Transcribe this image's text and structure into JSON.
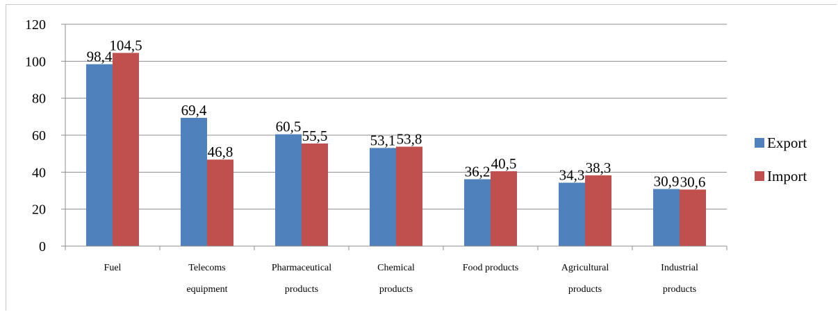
{
  "chart_data": {
    "type": "bar",
    "categories": [
      [
        "Fuel"
      ],
      [
        "Telecoms",
        "equipment"
      ],
      [
        "Pharmaceutical",
        "products"
      ],
      [
        "Chemical",
        "products"
      ],
      [
        "Food products"
      ],
      [
        "Agricultural",
        "products"
      ],
      [
        "Industrial",
        "products"
      ]
    ],
    "series": [
      {
        "name": "Export",
        "color": "#4f81bd",
        "values": [
          98.4,
          69.4,
          60.5,
          53.1,
          36.2,
          34.3,
          30.9
        ],
        "labels": [
          "98,4",
          "69,4",
          "60,5",
          "53,1",
          "36,2",
          "34,3",
          "30,9"
        ]
      },
      {
        "name": "Import",
        "color": "#c0504d",
        "values": [
          104.5,
          46.8,
          55.5,
          53.8,
          40.5,
          38.3,
          30.6
        ],
        "labels": [
          "104,5",
          "46,8",
          "55,5",
          "53,8",
          "40,5",
          "38,3",
          "30,6"
        ]
      }
    ],
    "ylim": [
      0,
      120
    ],
    "yticks": [
      0,
      20,
      40,
      60,
      80,
      100,
      120
    ],
    "grid": true,
    "legend": "right",
    "title": "",
    "xlabel": "",
    "ylabel": ""
  }
}
